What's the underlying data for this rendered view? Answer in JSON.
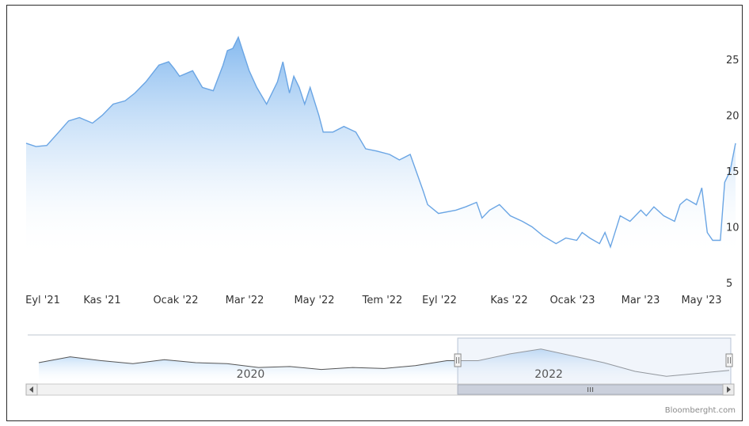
{
  "chart_data": {
    "type": "area",
    "title": "",
    "xlabel": "",
    "ylabel": "",
    "x_ticks": [
      "Eyl '21",
      "Kas '21",
      "Ocak '22",
      "Mar '22",
      "May '22",
      "Tem '22",
      "Eyl '22",
      "Kas '22",
      "Ocak '23",
      "Mar '23",
      "May '23"
    ],
    "y_ticks": [
      "25",
      "20",
      "15",
      "10",
      "5"
    ],
    "ylim": [
      5,
      27
    ],
    "grid": false,
    "series": [
      {
        "x": [
          "2021-09-01",
          "2021-09-10",
          "2021-09-20",
          "2021-10-01",
          "2021-10-10",
          "2021-10-20",
          "2021-11-01",
          "2021-11-10",
          "2021-11-20",
          "2021-12-01",
          "2021-12-10",
          "2021-12-20",
          "2022-01-01",
          "2022-01-10",
          "2022-01-15",
          "2022-01-20",
          "2022-02-01",
          "2022-02-10",
          "2022-02-20",
          "2022-03-01",
          "2022-03-05",
          "2022-03-10",
          "2022-03-15",
          "2022-03-20",
          "2022-03-25",
          "2022-04-01",
          "2022-04-10",
          "2022-04-20",
          "2022-04-25",
          "2022-05-01",
          "2022-05-05",
          "2022-05-10",
          "2022-05-15",
          "2022-05-20",
          "2022-05-28",
          "2022-06-01",
          "2022-06-10",
          "2022-06-20",
          "2022-07-01",
          "2022-07-10",
          "2022-07-20",
          "2022-08-01",
          "2022-08-10",
          "2022-08-20",
          "2022-09-01",
          "2022-09-05",
          "2022-09-15",
          "2022-10-01",
          "2022-10-10",
          "2022-10-20",
          "2022-10-25",
          "2022-11-01",
          "2022-11-10",
          "2022-11-20",
          "2022-12-01",
          "2022-12-10",
          "2022-12-20",
          "2023-01-01",
          "2023-01-10",
          "2023-01-20",
          "2023-01-25",
          "2023-02-01",
          "2023-02-10",
          "2023-02-15",
          "2023-02-20",
          "2023-03-01",
          "2023-03-10",
          "2023-03-20",
          "2023-03-25",
          "2023-04-01",
          "2023-04-10",
          "2023-04-20",
          "2023-04-25",
          "2023-05-01",
          "2023-05-10",
          "2023-05-15",
          "2023-05-20",
          "2023-05-25",
          "2023-06-01",
          "2023-06-05",
          "2023-06-10",
          "2023-06-15"
        ],
        "values": [
          17.5,
          17.2,
          17.3,
          18.5,
          19.5,
          19.8,
          19.3,
          20.0,
          21.0,
          21.3,
          22.0,
          23.0,
          24.5,
          24.8,
          24.2,
          23.5,
          24.0,
          22.5,
          22.2,
          24.5,
          25.8,
          26.0,
          27.0,
          25.5,
          24.0,
          22.5,
          21.0,
          23.0,
          24.8,
          22.0,
          23.5,
          22.5,
          21.0,
          22.5,
          20.0,
          18.5,
          18.5,
          19.0,
          18.5,
          17.0,
          16.8,
          16.5,
          16.0,
          16.5,
          13.2,
          12.0,
          11.2,
          11.5,
          11.8,
          12.2,
          10.8,
          11.5,
          12.0,
          11.0,
          10.5,
          10.0,
          9.2,
          8.5,
          9.0,
          8.8,
          9.5,
          9.0,
          8.5,
          9.5,
          8.2,
          11.0,
          10.5,
          11.5,
          11.0,
          11.8,
          11.0,
          10.5,
          12.0,
          12.5,
          12.0,
          13.5,
          9.5,
          8.8,
          8.8,
          14.0,
          15.0,
          17.5
        ]
      }
    ],
    "navigator": {
      "labels": [
        "2020",
        "2022"
      ],
      "x": [
        2019.0,
        2019.2,
        2019.4,
        2019.6,
        2019.8,
        2020.0,
        2020.2,
        2020.4,
        2020.6,
        2020.8,
        2021.0,
        2021.2,
        2021.4,
        2021.6,
        2021.8,
        2022.0,
        2022.2,
        2022.4,
        2022.6,
        2022.8,
        2023.0,
        2023.2,
        2023.4
      ],
      "values": [
        16.0,
        19.0,
        17.0,
        15.5,
        17.5,
        16.0,
        15.5,
        13.5,
        14.0,
        12.5,
        13.5,
        13.0,
        14.5,
        17.0,
        17.0,
        20.5,
        23.0,
        19.5,
        16.0,
        11.5,
        9.0,
        10.5,
        12.0
      ],
      "selection": [
        2021.67,
        2023.46
      ]
    }
  },
  "credit": "Bloomberght.com"
}
